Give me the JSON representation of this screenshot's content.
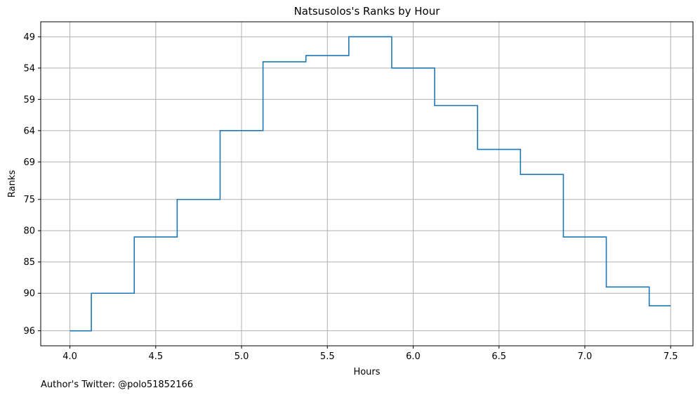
{
  "chart_data": {
    "type": "line",
    "style": "step",
    "title": "Natsusolos's Ranks by Hour",
    "xlabel": "Hours",
    "ylabel": "Ranks",
    "footer": "Author's Twitter: @polo51852166",
    "xlim": [
      3.83,
      7.63
    ],
    "ylim": [
      98.4,
      46.6
    ],
    "y_inverted": true,
    "grid": true,
    "x_ticks": [
      4.0,
      4.5,
      5.0,
      5.5,
      6.0,
      6.5,
      7.0,
      7.5
    ],
    "x_tick_labels": [
      "4.0",
      "4.5",
      "5.0",
      "5.5",
      "6.0",
      "6.5",
      "7.0",
      "7.5"
    ],
    "y_ticks": [
      49,
      54,
      59,
      64,
      69,
      75,
      80,
      85,
      90,
      96
    ],
    "y_tick_labels": [
      "49",
      "54",
      "59",
      "64",
      "69",
      "75",
      "80",
      "85",
      "90",
      "96"
    ],
    "line_color": "#1f77b4",
    "series": [
      {
        "x": [
          4.0,
          4.125,
          4.375,
          4.625,
          4.875,
          5.125,
          5.375,
          5.625,
          5.875,
          6.125,
          6.375,
          6.625,
          6.875,
          7.125,
          7.375,
          7.5
        ],
        "values": [
          96,
          90,
          81,
          75,
          64,
          53,
          52,
          49,
          54,
          60,
          67,
          71,
          81,
          89,
          92,
          92
        ]
      }
    ]
  }
}
